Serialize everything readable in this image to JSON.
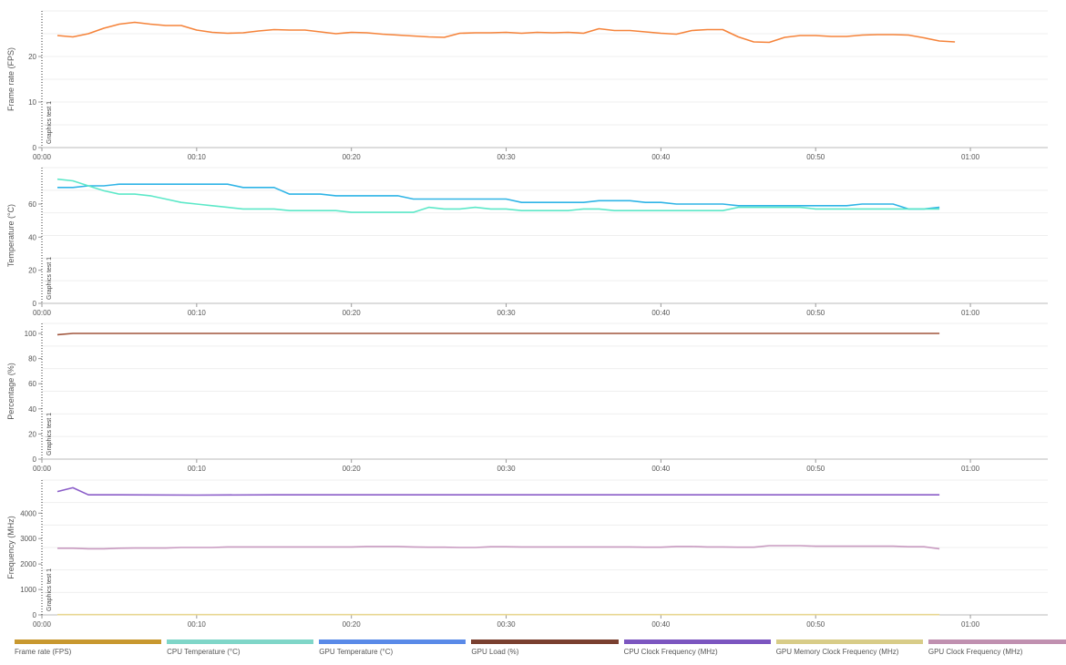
{
  "colors": {
    "fps": "#f5833a",
    "cpu_temp": "#5ce8c8",
    "gpu_temp": "#2fb4e6",
    "gpu_load": "#a0553c",
    "cpu_clock": "#8a5cc8",
    "gpu_mem_clock": "#e8d690",
    "gpu_clock": "#c89ac0"
  },
  "legend": [
    {
      "label": "Frame rate (FPS)",
      "color": "#c8982f"
    },
    {
      "label": "CPU Temperature (°C)",
      "color": "#7fd6c8"
    },
    {
      "label": "GPU Temperature (°C)",
      "color": "#5a8ae8"
    },
    {
      "label": "GPU Load (%)",
      "color": "#7a4030"
    },
    {
      "label": "CPU Clock Frequency (MHz)",
      "color": "#7c56c0"
    },
    {
      "label": "GPU Memory Clock Frequency (MHz)",
      "color": "#d8cc88"
    },
    {
      "label": "GPU Clock Frequency (MHz)",
      "color": "#c090b0"
    }
  ],
  "chart_data": [
    {
      "type": "line",
      "ylabel": "Frame rate (FPS)",
      "marker_label": "Graphics test 1",
      "xticks": [
        "00:00",
        "00:10",
        "00:20",
        "00:30",
        "00:40",
        "00:50",
        "01:00"
      ],
      "xlim": [
        0,
        65
      ],
      "ylim": [
        0,
        30
      ],
      "yticks": [
        0,
        10,
        20
      ],
      "grid": true,
      "series": [
        {
          "name": "Frame rate (FPS)",
          "color_key": "fps",
          "x": [
            1,
            2,
            3,
            4,
            5,
            6,
            7,
            8,
            9,
            10,
            11,
            12,
            13,
            14,
            15,
            16,
            17,
            18,
            19,
            20,
            21,
            22,
            23,
            24,
            25,
            26,
            27,
            28,
            29,
            30,
            31,
            32,
            33,
            34,
            35,
            36,
            37,
            38,
            39,
            40,
            41,
            42,
            43,
            44,
            45,
            46,
            47,
            48,
            49,
            50,
            51,
            52,
            53,
            54,
            55,
            56,
            57,
            58,
            59
          ],
          "y": [
            24.6,
            24.3,
            25.0,
            26.2,
            27.1,
            27.5,
            27.1,
            26.8,
            26.8,
            25.8,
            25.3,
            25.1,
            25.2,
            25.6,
            25.9,
            25.8,
            25.8,
            25.4,
            25.0,
            25.3,
            25.2,
            24.9,
            24.7,
            24.5,
            24.3,
            24.2,
            25.1,
            25.2,
            25.2,
            25.3,
            25.1,
            25.3,
            25.2,
            25.3,
            25.1,
            26.1,
            25.7,
            25.7,
            25.4,
            25.1,
            24.9,
            25.7,
            25.9,
            25.9,
            24.3,
            23.2,
            23.1,
            24.2,
            24.6,
            24.6,
            24.4,
            24.4,
            24.7,
            24.8,
            24.8,
            24.7,
            24.1,
            23.4,
            23.2
          ]
        }
      ]
    },
    {
      "type": "line",
      "ylabel": "Temperature (°C)",
      "marker_label": "Graphics test 1",
      "xticks": [
        "00:00",
        "00:10",
        "00:20",
        "00:30",
        "00:40",
        "00:50",
        "01:00"
      ],
      "xlim": [
        0,
        65
      ],
      "ylim": [
        0,
        82
      ],
      "yticks": [
        0,
        20,
        40,
        60
      ],
      "grid": true,
      "series": [
        {
          "name": "GPU Temperature (°C)",
          "color_key": "gpu_temp",
          "x": [
            1,
            2,
            3,
            4,
            5,
            6,
            7,
            8,
            9,
            10,
            11,
            12,
            13,
            14,
            15,
            16,
            17,
            18,
            19,
            20,
            21,
            22,
            23,
            24,
            25,
            26,
            27,
            28,
            29,
            30,
            31,
            32,
            33,
            34,
            35,
            36,
            37,
            38,
            39,
            40,
            41,
            42,
            43,
            44,
            45,
            46,
            47,
            48,
            49,
            50,
            51,
            52,
            53,
            54,
            55,
            56,
            57,
            58
          ],
          "y": [
            70,
            70,
            71,
            71,
            72,
            72,
            72,
            72,
            72,
            72,
            72,
            72,
            70,
            70,
            70,
            66,
            66,
            66,
            65,
            65,
            65,
            65,
            65,
            63,
            63,
            63,
            63,
            63,
            63,
            63,
            61,
            61,
            61,
            61,
            61,
            62,
            62,
            62,
            61,
            61,
            60,
            60,
            60,
            60,
            59,
            59,
            59,
            59,
            59,
            59,
            59,
            59,
            60,
            60,
            60,
            57,
            57,
            58
          ]
        },
        {
          "name": "CPU Temperature (°C)",
          "color_key": "cpu_temp",
          "x": [
            1,
            2,
            3,
            4,
            5,
            6,
            7,
            8,
            9,
            10,
            11,
            12,
            13,
            14,
            15,
            16,
            17,
            18,
            19,
            20,
            21,
            22,
            23,
            24,
            25,
            26,
            27,
            28,
            29,
            30,
            31,
            32,
            33,
            34,
            35,
            36,
            37,
            38,
            39,
            40,
            41,
            42,
            43,
            44,
            45,
            46,
            47,
            48,
            49,
            50,
            51,
            52,
            53,
            54,
            55,
            56,
            57,
            58
          ],
          "y": [
            75,
            74,
            71,
            68,
            66,
            66,
            65,
            63,
            61,
            60,
            59,
            58,
            57,
            57,
            57,
            56,
            56,
            56,
            56,
            55,
            55,
            55,
            55,
            55,
            58,
            57,
            57,
            58,
            57,
            57,
            56,
            56,
            56,
            56,
            57,
            57,
            56,
            56,
            56,
            56,
            56,
            56,
            56,
            56,
            58,
            58,
            58,
            58,
            58,
            57,
            57,
            57,
            57,
            57,
            57,
            57,
            57,
            57
          ]
        }
      ]
    },
    {
      "type": "line",
      "ylabel": "Percentage (%)",
      "marker_label": "Graphics test 1",
      "xticks": [
        "00:00",
        "00:10",
        "00:20",
        "00:30",
        "00:40",
        "00:50",
        "01:00"
      ],
      "xlim": [
        0,
        65
      ],
      "ylim": [
        0,
        108
      ],
      "yticks": [
        0,
        20,
        40,
        60,
        80,
        100
      ],
      "grid": true,
      "series": [
        {
          "name": "GPU Load (%)",
          "color_key": "gpu_load",
          "x": [
            1,
            2,
            10,
            20,
            30,
            40,
            50,
            58
          ],
          "y": [
            99,
            100,
            100,
            100,
            100,
            100,
            100,
            100
          ]
        }
      ]
    },
    {
      "type": "line",
      "ylabel": "Frequency (MHz)",
      "marker_label": "Graphics test 1",
      "xticks": [
        "00:00",
        "00:10",
        "00:20",
        "00:30",
        "00:40",
        "00:50",
        "01:00"
      ],
      "xlim": [
        0,
        65
      ],
      "ylim": [
        0,
        5300
      ],
      "yticks": [
        0,
        1000,
        2000,
        3000,
        4000
      ],
      "grid": true,
      "series": [
        {
          "name": "CPU Clock Frequency (MHz)",
          "color_key": "cpu_clock",
          "x": [
            1,
            2,
            3,
            5,
            10,
            15,
            20,
            25,
            30,
            35,
            40,
            45,
            50,
            55,
            58
          ],
          "y": [
            4850,
            5000,
            4720,
            4720,
            4710,
            4720,
            4720,
            4720,
            4720,
            4720,
            4720,
            4720,
            4720,
            4720,
            4720
          ]
        },
        {
          "name": "GPU Clock Frequency (MHz)",
          "color_key": "gpu_clock",
          "x": [
            1,
            2,
            3,
            4,
            5,
            6,
            7,
            8,
            9,
            10,
            11,
            12,
            13,
            14,
            15,
            16,
            17,
            18,
            19,
            20,
            21,
            22,
            23,
            24,
            25,
            26,
            27,
            28,
            29,
            30,
            31,
            32,
            33,
            34,
            35,
            36,
            37,
            38,
            39,
            40,
            41,
            42,
            43,
            44,
            45,
            46,
            47,
            48,
            49,
            50,
            51,
            52,
            53,
            54,
            55,
            56,
            57,
            58
          ],
          "y": [
            2620,
            2620,
            2600,
            2600,
            2620,
            2630,
            2630,
            2630,
            2650,
            2650,
            2650,
            2670,
            2670,
            2670,
            2670,
            2670,
            2670,
            2670,
            2670,
            2670,
            2690,
            2690,
            2690,
            2670,
            2660,
            2660,
            2650,
            2650,
            2680,
            2680,
            2670,
            2670,
            2670,
            2670,
            2670,
            2670,
            2670,
            2670,
            2660,
            2660,
            2690,
            2690,
            2670,
            2670,
            2660,
            2660,
            2720,
            2720,
            2720,
            2700,
            2700,
            2700,
            2700,
            2700,
            2700,
            2680,
            2680,
            2600
          ]
        },
        {
          "name": "GPU Memory Clock Frequency (MHz)",
          "color_key": "gpu_mem_clock",
          "x": [
            1,
            58
          ],
          "y": [
            10,
            10
          ]
        }
      ]
    }
  ]
}
